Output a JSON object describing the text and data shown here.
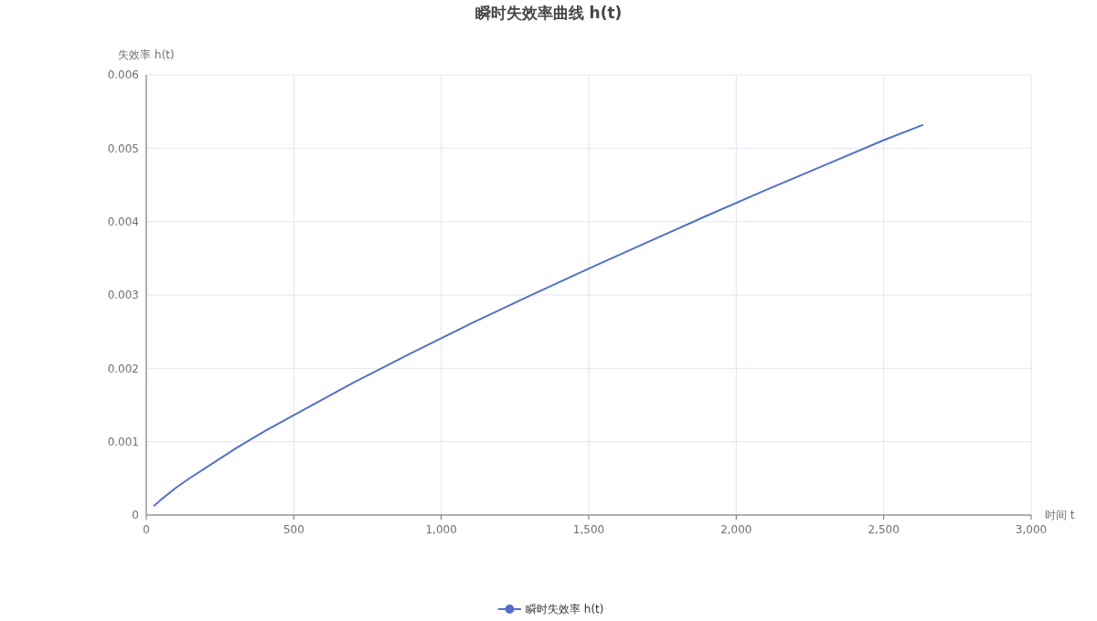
{
  "chart_data": {
    "type": "line",
    "title": "瞬时失效率曲线 h(t)",
    "xlabel": "时间 t",
    "ylabel": "失效率 h(t)",
    "series": [
      {
        "name": "瞬时失效率 h(t)",
        "color": "#5470c6",
        "x": [
          25,
          50,
          100,
          150,
          200,
          300,
          400,
          500,
          700,
          900,
          1100,
          1300,
          1500,
          1700,
          1900,
          2100,
          2300,
          2500,
          2634
        ],
        "values": [
          0.00012,
          0.00021,
          0.00037,
          0.00051,
          0.00064,
          0.0009,
          0.00114,
          0.00136,
          0.0018,
          0.00221,
          0.00261,
          0.00299,
          0.00336,
          0.00372,
          0.00408,
          0.00443,
          0.00477,
          0.00511,
          0.00532
        ]
      }
    ],
    "xlim": [
      0,
      3000
    ],
    "xticks": [
      0,
      {
        "value": 500,
        "label": "500"
      },
      {
        "value": 1000,
        "label": "1,000"
      },
      {
        "value": 1500,
        "label": "1,500"
      },
      {
        "value": 2000,
        "label": "2,000"
      },
      {
        "value": 2500,
        "label": "2,500"
      },
      {
        "value": 3000,
        "label": "3,000"
      }
    ],
    "ylim": [
      0,
      0.006
    ],
    "yticks": [
      0,
      0.001,
      0.002,
      0.003,
      0.004,
      0.005,
      0.006
    ],
    "grid": true,
    "legend": "bottom",
    "marker": "none",
    "line_style": "solid"
  }
}
